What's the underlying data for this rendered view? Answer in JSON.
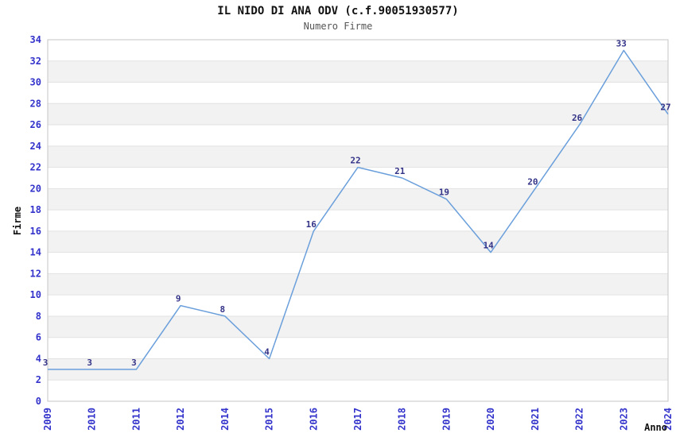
{
  "title": "IL NIDO DI ANA ODV (c.f.90051930577)",
  "subtitle": "Numero Firme",
  "chart_data": {
    "type": "line",
    "title": "IL NIDO DI ANA ODV (c.f.90051930577)",
    "subtitle": "Numero Firme",
    "xlabel": "Anno",
    "ylabel": "Firme",
    "categories": [
      "2009",
      "2010",
      "2011",
      "2012",
      "2014",
      "2015",
      "2016",
      "2017",
      "2018",
      "2019",
      "2020",
      "2021",
      "2022",
      "2023",
      "2024"
    ],
    "values": [
      3,
      3,
      3,
      9,
      8,
      4,
      16,
      22,
      21,
      19,
      14,
      20,
      26,
      33,
      27
    ],
    "ylim": [
      0,
      34
    ],
    "ytick_step": 2,
    "xtick_rotation_degrees": 90,
    "grid": "alternating-horizontal-bands",
    "legend_position": "none",
    "colors": {
      "line": "#6a9fdb",
      "tick_labels": "#3333cc",
      "value_labels": "#333388",
      "band_fill": "#f2f2f2",
      "band_edge": "#e2e2e2",
      "plot_border": "#c6c6c6",
      "title_text": "#111111",
      "subtitle_text": "#555555"
    }
  }
}
